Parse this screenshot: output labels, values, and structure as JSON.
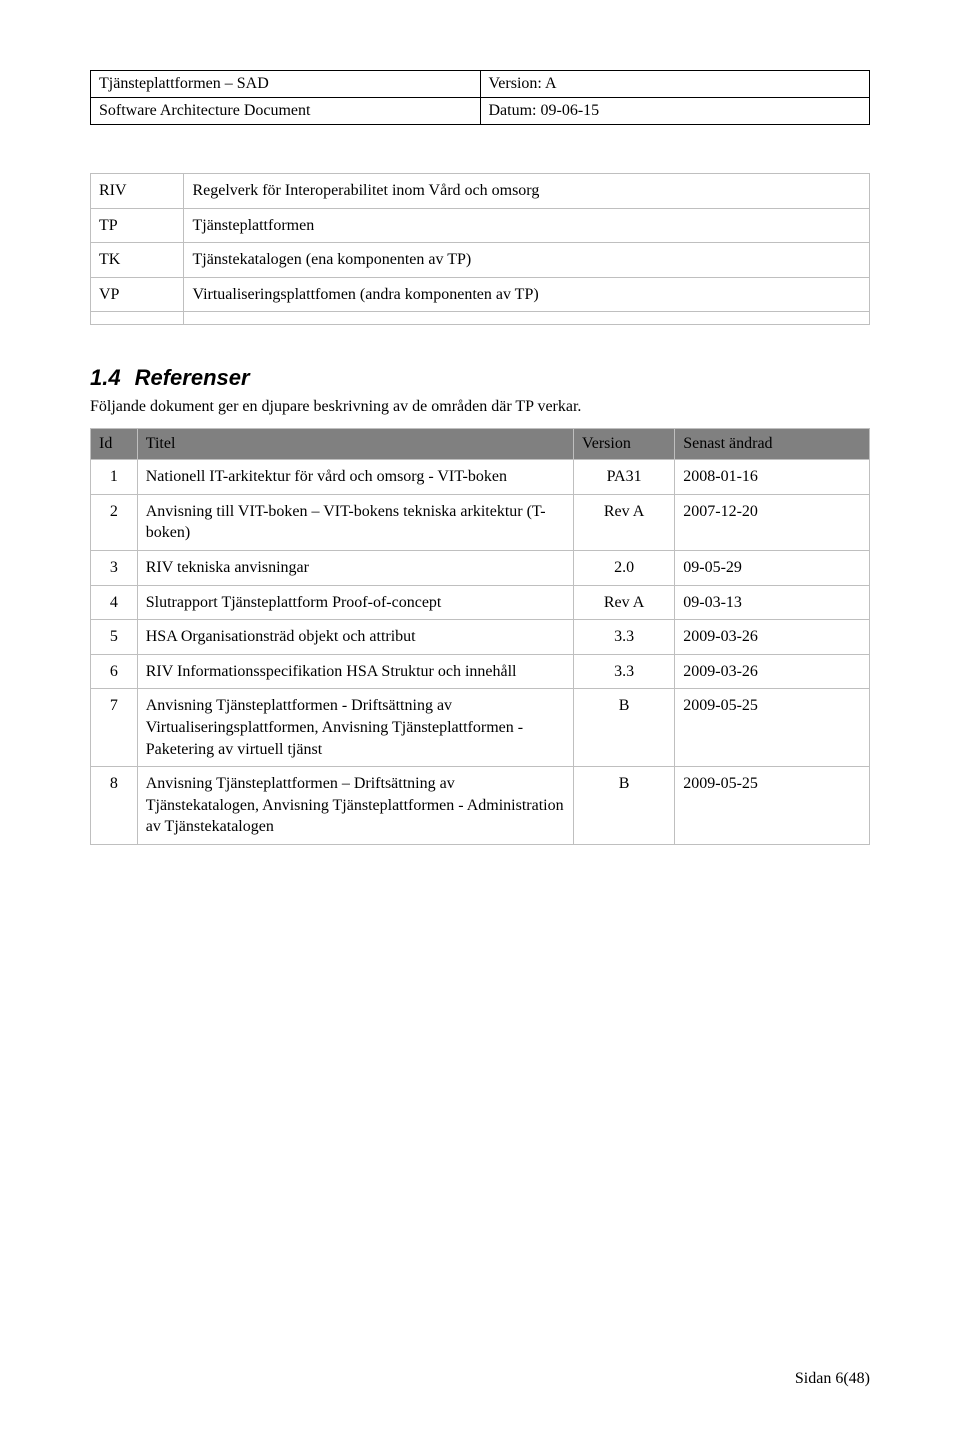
{
  "header": {
    "left_top": "Tjänsteplattformen – SAD",
    "right_top": "Version: A",
    "left_bottom": "Software Architecture Document",
    "right_bottom": "Datum: 09-06-15"
  },
  "abbrev": {
    "rows": [
      {
        "abbr": "RIV",
        "desc": "Regelverk för Interoperabilitet inom Vård och omsorg"
      },
      {
        "abbr": "TP",
        "desc": "Tjänsteplattformen"
      },
      {
        "abbr": "TK",
        "desc": "Tjänstekatalogen (ena komponenten av TP)"
      },
      {
        "abbr": "VP",
        "desc": "Virtualiseringsplattfomen (andra komponenten av TP)"
      },
      {
        "abbr": "",
        "desc": ""
      }
    ]
  },
  "section": {
    "number": "1.4",
    "title": "Referenser",
    "intro": "Följande dokument ger en djupare beskrivning av de områden där TP verkar."
  },
  "ref_table": {
    "headers": {
      "id": "Id",
      "title": "Titel",
      "version": "Version",
      "date": "Senast ändrad"
    },
    "rows": [
      {
        "id": "1",
        "title": "Nationell IT-arkitektur för vård och omsorg - VIT-boken",
        "version": "PA31",
        "date": "2008-01-16"
      },
      {
        "id": "2",
        "title": "Anvisning till VIT-boken – VIT-bokens tekniska arkitektur (T-boken)",
        "version": "Rev A",
        "date": "2007-12-20"
      },
      {
        "id": "3",
        "title": "RIV tekniska anvisningar",
        "version": "2.0",
        "date": "09-05-29"
      },
      {
        "id": "4",
        "title": "Slutrapport Tjänsteplattform Proof-of-concept",
        "version": "Rev A",
        "date": "09-03-13"
      },
      {
        "id": "5",
        "title": "HSA Organisationsträd objekt och attribut",
        "version": "3.3",
        "date": "2009-03-26"
      },
      {
        "id": "6",
        "title": "RIV Informationsspecifikation HSA Struktur och innehåll",
        "version": "3.3",
        "date": "2009-03-26"
      },
      {
        "id": "7",
        "title": "Anvisning Tjänsteplattformen - Driftsättning av Virtualiseringsplattformen, Anvisning Tjänsteplattformen - Paketering av virtuell tjänst",
        "version": "B",
        "date": "2009-05-25"
      },
      {
        "id": "8",
        "title": "Anvisning Tjänsteplattformen – Driftsättning av Tjänstekatalogen, Anvisning Tjänsteplattformen - Administration av Tjänstekatalogen",
        "version": "B",
        "date": "2009-05-25"
      }
    ]
  },
  "footer": "Sidan 6(48)"
}
